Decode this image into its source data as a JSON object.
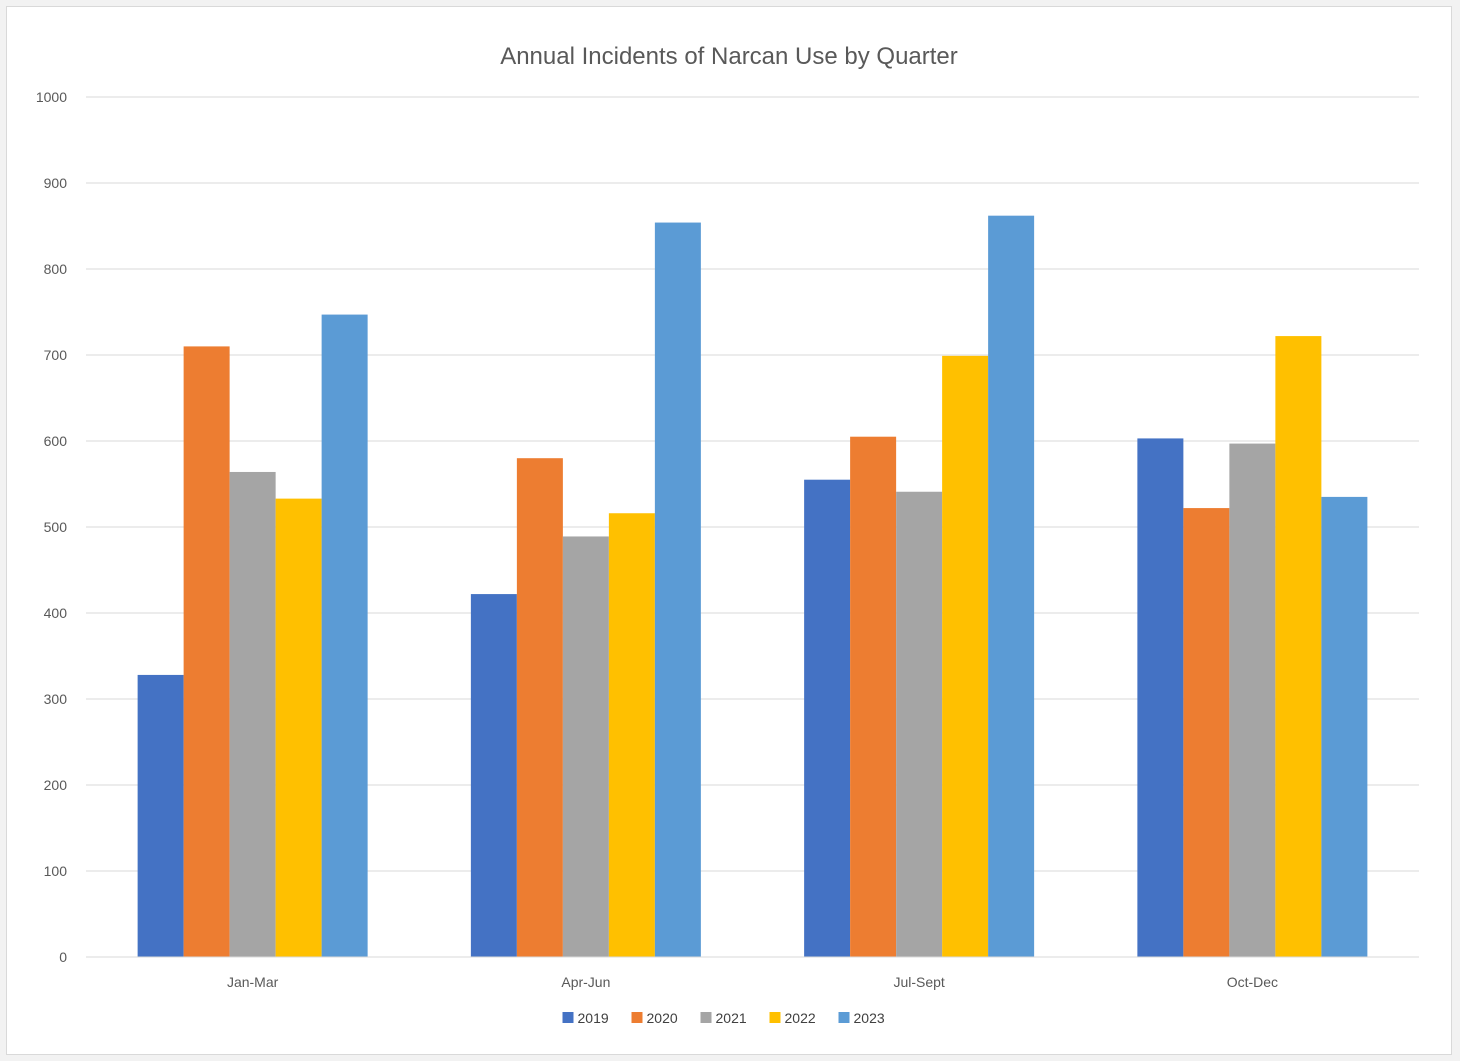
{
  "chart_data": {
    "type": "bar",
    "title": "Annual Incidents of Narcan Use by Quarter",
    "xlabel": "",
    "ylabel": "",
    "categories": [
      "Jan-Mar",
      "Apr-Jun",
      "Jul-Sept",
      "Oct-Dec"
    ],
    "series": [
      {
        "name": "2019",
        "color": "#4472c4",
        "values": [
          328,
          422,
          555,
          603
        ]
      },
      {
        "name": "2020",
        "color": "#ed7d31",
        "values": [
          710,
          580,
          605,
          522
        ]
      },
      {
        "name": "2021",
        "color": "#a5a5a5",
        "values": [
          564,
          489,
          541,
          597
        ]
      },
      {
        "name": "2022",
        "color": "#ffc000",
        "values": [
          533,
          516,
          699,
          722
        ]
      },
      {
        "name": "2023",
        "color": "#5b9bd5",
        "values": [
          747,
          854,
          862,
          535
        ]
      }
    ],
    "ylim": [
      0,
      1000
    ],
    "yticks": [
      0,
      100,
      200,
      300,
      400,
      500,
      600,
      700,
      800,
      900,
      1000
    ],
    "grid": true,
    "legend_position": "bottom"
  }
}
